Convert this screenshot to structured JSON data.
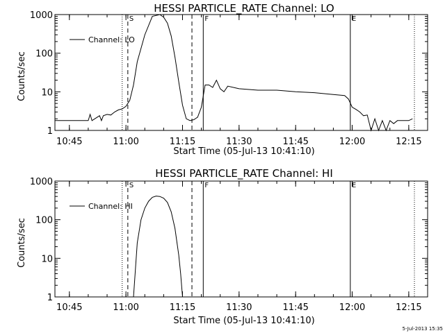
{
  "footer": {
    "date_stamp": "5-Jul-2013 15:35"
  },
  "chart_data": [
    {
      "type": "line",
      "title": "HESSI PARTICLE_RATE Channel: LO",
      "xlabel": "Start Time (05-Jul-13 10:41:10)",
      "ylabel": "Counts/sec",
      "yscale": "log",
      "ylim": [
        1,
        1000
      ],
      "xlim": [
        "10:41:10",
        "12:20:00"
      ],
      "x_ticks": [
        "10:45",
        "11:00",
        "11:15",
        "11:30",
        "11:45",
        "12:00",
        "12:15"
      ],
      "y_ticks": [
        "1",
        "10",
        "100",
        "1000"
      ],
      "legend": {
        "label": "Channel: LO",
        "position": "top-left"
      },
      "markers": [
        {
          "time": "10:59:00",
          "style": "dotted",
          "label": ""
        },
        {
          "time": "11:00:30",
          "style": "dashed",
          "label": "S"
        },
        {
          "time": "11:17:30",
          "style": "dashed",
          "label": ""
        },
        {
          "time": "11:20:30",
          "style": "solid",
          "label": "F"
        },
        {
          "time": "11:59:30",
          "style": "solid",
          "label": "E"
        },
        {
          "time": "12:16:30",
          "style": "dotted",
          "label": ""
        }
      ],
      "series": [
        {
          "name": "Channel: LO",
          "x": [
            "10:41:10",
            "10:50:00",
            "10:50:30",
            "10:51:00",
            "10:53:00",
            "10:53:30",
            "10:54:00",
            "10:55:00",
            "10:56:00",
            "10:57:00",
            "10:58:00",
            "10:59:00",
            "11:00:00",
            "11:01:00",
            "11:02:00",
            "11:03:00",
            "11:05:00",
            "11:07:00",
            "11:09:00",
            "11:10:00",
            "11:11:00",
            "11:12:00",
            "11:13:00",
            "11:14:00",
            "11:15:00",
            "11:16:00",
            "11:17:00",
            "11:18:00",
            "11:19:00",
            "11:20:00",
            "11:21:00",
            "11:22:00",
            "11:23:00",
            "11:24:00",
            "11:25:00",
            "11:26:00",
            "11:27:00",
            "11:30:00",
            "11:35:00",
            "11:40:00",
            "11:45:00",
            "11:50:00",
            "11:55:00",
            "11:58:00",
            "11:59:00",
            "12:00:00",
            "12:01:00",
            "12:02:00",
            "12:03:00",
            "12:04:00",
            "12:05:00",
            "12:06:00",
            "12:07:00",
            "12:08:00",
            "12:09:00",
            "12:10:00",
            "12:11:00",
            "12:12:00",
            "12:14:00",
            "12:15:00",
            "12:16:00"
          ],
          "y": [
            1.8,
            1.8,
            2.6,
            1.8,
            2.4,
            1.8,
            2.4,
            2.6,
            2.5,
            3.0,
            3.4,
            3.6,
            4.2,
            6.0,
            15,
            60,
            300,
            900,
            1000,
            850,
            600,
            280,
            80,
            18,
            4.5,
            2.0,
            1.8,
            1.9,
            2.2,
            4.0,
            15,
            15,
            13,
            20,
            12,
            10,
            14,
            12,
            11,
            11,
            10,
            9.5,
            8.5,
            8.0,
            6.5,
            4.0,
            3.5,
            3.0,
            2.4,
            2.5,
            1.0,
            2.0,
            1.0,
            1.8,
            1.0,
            1.8,
            1.5,
            1.8,
            1.8,
            1.8,
            2.0
          ]
        }
      ]
    },
    {
      "type": "line",
      "title": "HESSI PARTICLE_RATE Channel: HI",
      "xlabel": "Start Time (05-Jul-13 10:41:10)",
      "ylabel": "Counts/sec",
      "yscale": "log",
      "ylim": [
        1,
        1000
      ],
      "xlim": [
        "10:41:10",
        "12:20:00"
      ],
      "x_ticks": [
        "10:45",
        "11:00",
        "11:15",
        "11:30",
        "11:45",
        "12:00",
        "12:15"
      ],
      "y_ticks": [
        "1",
        "10",
        "100",
        "1000"
      ],
      "legend": {
        "label": "Channel: HI",
        "position": "top-left"
      },
      "markers": [
        {
          "time": "10:59:00",
          "style": "dotted",
          "label": ""
        },
        {
          "time": "11:00:30",
          "style": "dashed",
          "label": "S"
        },
        {
          "time": "11:17:30",
          "style": "dashed",
          "label": ""
        },
        {
          "time": "11:20:30",
          "style": "solid",
          "label": "F"
        },
        {
          "time": "11:59:30",
          "style": "solid",
          "label": "E"
        },
        {
          "time": "12:16:30",
          "style": "dotted",
          "label": ""
        }
      ],
      "series": [
        {
          "name": "Channel: HI",
          "x": [
            "11:02:00",
            "11:02:30",
            "11:03:00",
            "11:04:00",
            "11:05:00",
            "11:06:00",
            "11:07:00",
            "11:08:00",
            "11:09:00",
            "11:10:00",
            "11:11:00",
            "11:12:00",
            "11:13:00",
            "11:14:00",
            "11:14:30",
            "11:15:00"
          ],
          "y": [
            1,
            5,
            25,
            100,
            200,
            300,
            380,
            410,
            400,
            360,
            280,
            160,
            60,
            12,
            4,
            1
          ]
        }
      ]
    }
  ]
}
